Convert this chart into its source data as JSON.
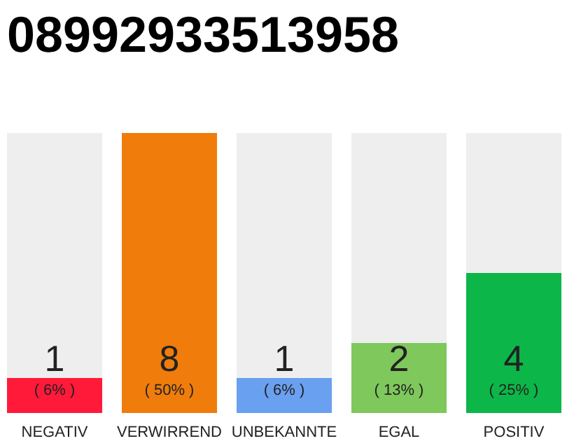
{
  "chart_data": {
    "type": "bar",
    "title": "08992933513958",
    "categories": [
      "NEGATIV",
      "VERWIRREND",
      "UNBEKANNTE",
      "EGAL",
      "POSITIV"
    ],
    "values": [
      1,
      8,
      1,
      2,
      4
    ],
    "colors": [
      "#ff1a3a",
      "#f07c0c",
      "#6aa0f0",
      "#7ec85c",
      "#0cb648"
    ],
    "data_labels": true,
    "annotations": [
      "( 6% )",
      "( 50% )",
      "( 6% )",
      "( 13% )",
      "( 25% )"
    ]
  }
}
